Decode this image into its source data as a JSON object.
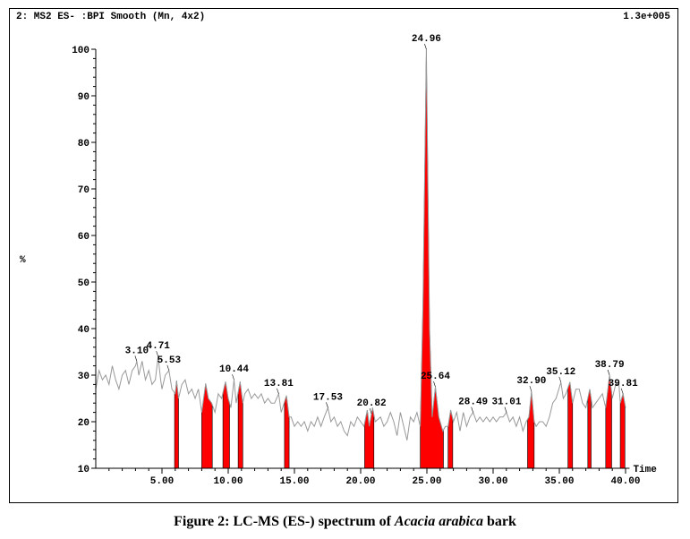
{
  "header": {
    "title": "2: MS2 ES- :BPI Smooth (Mn, 4x2)",
    "scale": "1.3e+005"
  },
  "caption": {
    "prefix": "Figure 2: LC-MS (ES-) spectrum of ",
    "species": "Acacia arabica",
    "suffix": " bark"
  },
  "chart_data": {
    "type": "line",
    "title": "2: MS2 ES- :BPI Smooth (Mn, 4x2)",
    "xlabel": "Time",
    "ylabel": "%",
    "xlim": [
      0,
      40.5
    ],
    "ylim": [
      10,
      100
    ],
    "xticks": [
      "5.00",
      "10.00",
      "15.00",
      "20.00",
      "25.00",
      "30.00",
      "35.00",
      "40.00"
    ],
    "yticks": [
      "10",
      "20",
      "30",
      "40",
      "50",
      "60",
      "70",
      "80",
      "90",
      "100"
    ],
    "grid": false,
    "line_color": "#999999",
    "fill_color": "#ff0000",
    "trace": [
      [
        0,
        27
      ],
      [
        0.25,
        31
      ],
      [
        0.5,
        29
      ],
      [
        0.75,
        30
      ],
      [
        1,
        28
      ],
      [
        1.25,
        32
      ],
      [
        1.5,
        29
      ],
      [
        1.75,
        27
      ],
      [
        2,
        30
      ],
      [
        2.25,
        31
      ],
      [
        2.5,
        28
      ],
      [
        2.75,
        31
      ],
      [
        3,
        32
      ],
      [
        3.1,
        33
      ],
      [
        3.25,
        30
      ],
      [
        3.5,
        33
      ],
      [
        3.75,
        29
      ],
      [
        4,
        31
      ],
      [
        4.25,
        28
      ],
      [
        4.5,
        29
      ],
      [
        4.71,
        34
      ],
      [
        4.9,
        29
      ],
      [
        5,
        27
      ],
      [
        5.25,
        30
      ],
      [
        5.53,
        31
      ],
      [
        5.75,
        27
      ],
      [
        6,
        26
      ],
      [
        6.1,
        28.8
      ],
      [
        6.25,
        25
      ],
      [
        6.5,
        28
      ],
      [
        6.75,
        29
      ],
      [
        7,
        26
      ],
      [
        7.25,
        27
      ],
      [
        7.5,
        25
      ],
      [
        7.75,
        27
      ],
      [
        8,
        22
      ],
      [
        8.3,
        28.2
      ],
      [
        8.5,
        25
      ],
      [
        8.75,
        24
      ],
      [
        9,
        22
      ],
      [
        9.25,
        26
      ],
      [
        9.5,
        25
      ],
      [
        9.8,
        28.6
      ],
      [
        10,
        25
      ],
      [
        10.2,
        23
      ],
      [
        10.44,
        29
      ],
      [
        10.6,
        24
      ],
      [
        10.9,
        28.6
      ],
      [
        11.1,
        24
      ],
      [
        11.25,
        26
      ],
      [
        11.5,
        27
      ],
      [
        11.75,
        25
      ],
      [
        12,
        26
      ],
      [
        12.25,
        25
      ],
      [
        12.5,
        26
      ],
      [
        12.75,
        24
      ],
      [
        13,
        25
      ],
      [
        13.25,
        24
      ],
      [
        13.5,
        24
      ],
      [
        13.81,
        26
      ],
      [
        14,
        22
      ],
      [
        14.4,
        25.6
      ],
      [
        14.6,
        21
      ],
      [
        14.75,
        21
      ],
      [
        15,
        19
      ],
      [
        15.25,
        20
      ],
      [
        15.5,
        19
      ],
      [
        15.75,
        20
      ],
      [
        16,
        18
      ],
      [
        16.25,
        20
      ],
      [
        16.5,
        19
      ],
      [
        16.75,
        21
      ],
      [
        17,
        19
      ],
      [
        17.25,
        21
      ],
      [
        17.53,
        23
      ],
      [
        17.75,
        20
      ],
      [
        18,
        21
      ],
      [
        18.25,
        19
      ],
      [
        18.5,
        20
      ],
      [
        18.75,
        18
      ],
      [
        19,
        17
      ],
      [
        19.25,
        20
      ],
      [
        19.5,
        19
      ],
      [
        19.75,
        21
      ],
      [
        20,
        20
      ],
      [
        20.25,
        19
      ],
      [
        20.5,
        22.5
      ],
      [
        20.65,
        19
      ],
      [
        20.9,
        23
      ],
      [
        21.1,
        20
      ],
      [
        21.5,
        21
      ],
      [
        21.75,
        19
      ],
      [
        22,
        20
      ],
      [
        22.25,
        22
      ],
      [
        22.5,
        20
      ],
      [
        22.75,
        17
      ],
      [
        23,
        22
      ],
      [
        23.25,
        19
      ],
      [
        23.5,
        16
      ],
      [
        23.75,
        21
      ],
      [
        24,
        20
      ],
      [
        24.25,
        22
      ],
      [
        24.5,
        19
      ],
      [
        24.7,
        45
      ],
      [
        24.96,
        100
      ],
      [
        25.2,
        40
      ],
      [
        25.4,
        21
      ],
      [
        25.64,
        27.5
      ],
      [
        25.9,
        21
      ],
      [
        26.2,
        18
      ],
      [
        26.4,
        19
      ],
      [
        26.6,
        19
      ],
      [
        26.8,
        22.5
      ],
      [
        27,
        20
      ],
      [
        27.25,
        22
      ],
      [
        27.5,
        18
      ],
      [
        27.75,
        22
      ],
      [
        28,
        19
      ],
      [
        28.25,
        21
      ],
      [
        28.49,
        22
      ],
      [
        28.75,
        20
      ],
      [
        29,
        21
      ],
      [
        29.25,
        20
      ],
      [
        29.5,
        21
      ],
      [
        29.75,
        20
      ],
      [
        30,
        21
      ],
      [
        30.25,
        20
      ],
      [
        30.5,
        21
      ],
      [
        30.75,
        21
      ],
      [
        31.01,
        22
      ],
      [
        31.25,
        20
      ],
      [
        31.5,
        21
      ],
      [
        31.75,
        19
      ],
      [
        32,
        21
      ],
      [
        32.25,
        18
      ],
      [
        32.5,
        20
      ],
      [
        32.7,
        21
      ],
      [
        32.9,
        26.5
      ],
      [
        33.1,
        20
      ],
      [
        33.25,
        19
      ],
      [
        33.5,
        20
      ],
      [
        33.75,
        20
      ],
      [
        34,
        19
      ],
      [
        34.25,
        21
      ],
      [
        34.5,
        24
      ],
      [
        34.75,
        25
      ],
      [
        35.12,
        28.5
      ],
      [
        35.3,
        25
      ],
      [
        35.5,
        26
      ],
      [
        35.8,
        28.5
      ],
      [
        36,
        24
      ],
      [
        36.25,
        27
      ],
      [
        36.5,
        27
      ],
      [
        36.75,
        24
      ],
      [
        37,
        23
      ],
      [
        37.3,
        27
      ],
      [
        37.5,
        23
      ],
      [
        37.75,
        24
      ],
      [
        38,
        25
      ],
      [
        38.25,
        26
      ],
      [
        38.5,
        23
      ],
      [
        38.79,
        30
      ],
      [
        39,
        25
      ],
      [
        39.25,
        28
      ],
      [
        39.5,
        28
      ],
      [
        39.6,
        24
      ],
      [
        39.81,
        26
      ],
      [
        40,
        23
      ]
    ],
    "filled_peaks": [
      [
        5.95,
        6.25
      ],
      [
        8.0,
        8.8
      ],
      [
        9.6,
        10.1
      ],
      [
        10.75,
        11.1
      ],
      [
        14.25,
        14.6
      ],
      [
        20.3,
        21.0
      ],
      [
        24.5,
        26.25
      ],
      [
        26.6,
        26.95
      ],
      [
        32.6,
        33.1
      ],
      [
        35.65,
        36.0
      ],
      [
        37.15,
        37.4
      ],
      [
        38.5,
        38.95
      ],
      [
        39.6,
        39.95
      ]
    ],
    "peak_labels": [
      "3.10",
      "4.71",
      "5.53",
      "10.44",
      "13.81",
      "17.53",
      "20.82",
      "24.96",
      "25.64",
      "28.49",
      "31.01",
      "32.90",
      "35.12",
      "38.79",
      "39.81"
    ]
  }
}
